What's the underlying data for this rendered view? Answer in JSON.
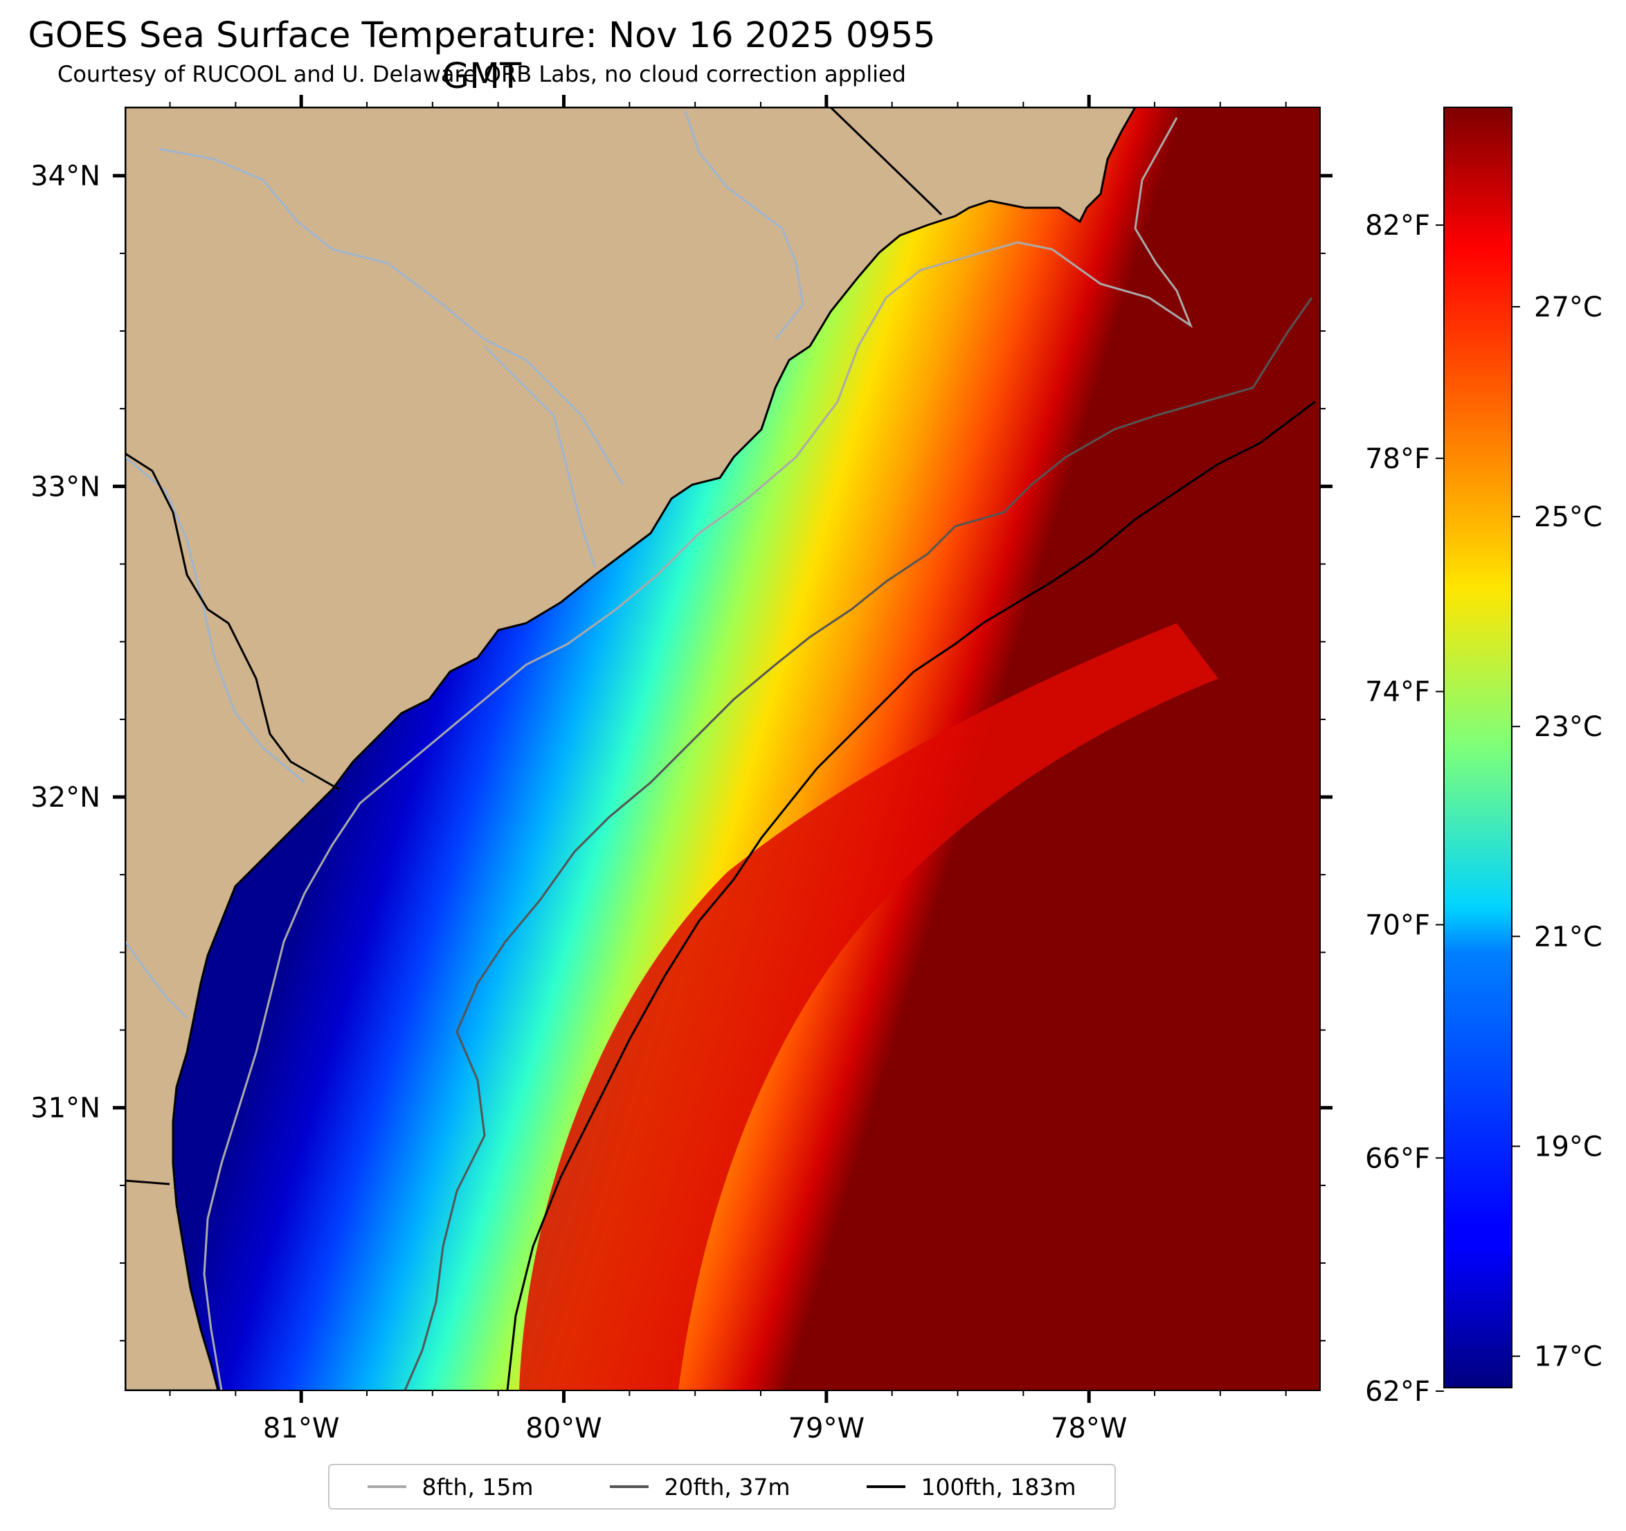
{
  "title": "GOES Sea Surface Temperature: Nov 16 2025 0955 GMT",
  "subtitle": "Courtesy of RUCOOL and U. Delaware ORB Labs, no cloud correction applied",
  "colors": {
    "land": "#d0b48e",
    "river": "#a0b4cc",
    "coastline": "#000000",
    "isobath_8fth": "#aaaaaa",
    "isobath_20fth": "#555555",
    "isobath_100fth": "#000000"
  },
  "map": {
    "lon_range": [
      -81.67,
      -77.12
    ],
    "lat_range": [
      30.09,
      34.22
    ],
    "lon_ticks": [
      {
        "value": -81,
        "label": "81°W"
      },
      {
        "value": -80,
        "label": "80°W"
      },
      {
        "value": -79,
        "label": "79°W"
      },
      {
        "value": -78,
        "label": "78°W"
      }
    ],
    "lat_ticks": [
      {
        "value": 34,
        "label": "34°N"
      },
      {
        "value": 33,
        "label": "33°N"
      },
      {
        "value": 32,
        "label": "32°N"
      },
      {
        "value": 31,
        "label": "31°N"
      }
    ]
  },
  "colorbar": {
    "colormap": "jet",
    "range_c": [
      16.7,
      28.9
    ],
    "celsius_ticks": [
      {
        "value": 27,
        "label": "27°C"
      },
      {
        "value": 25,
        "label": "25°C"
      },
      {
        "value": 23,
        "label": "23°C"
      },
      {
        "value": 21,
        "label": "21°C"
      },
      {
        "value": 19,
        "label": "19°C"
      },
      {
        "value": 17,
        "label": "17°C"
      }
    ],
    "fahrenheit_ticks": [
      {
        "value": 82,
        "label": "82°F"
      },
      {
        "value": 78,
        "label": "78°F"
      },
      {
        "value": 74,
        "label": "74°F"
      },
      {
        "value": 70,
        "label": "70°F"
      },
      {
        "value": 66,
        "label": "66°F"
      },
      {
        "value": 62,
        "label": "62°F"
      }
    ]
  },
  "legend": {
    "items": [
      {
        "label": "8fth, 15m",
        "color": "#aaaaaa"
      },
      {
        "label": "20fth, 37m",
        "color": "#555555"
      },
      {
        "label": "100fth, 183m",
        "color": "#000000"
      }
    ]
  }
}
